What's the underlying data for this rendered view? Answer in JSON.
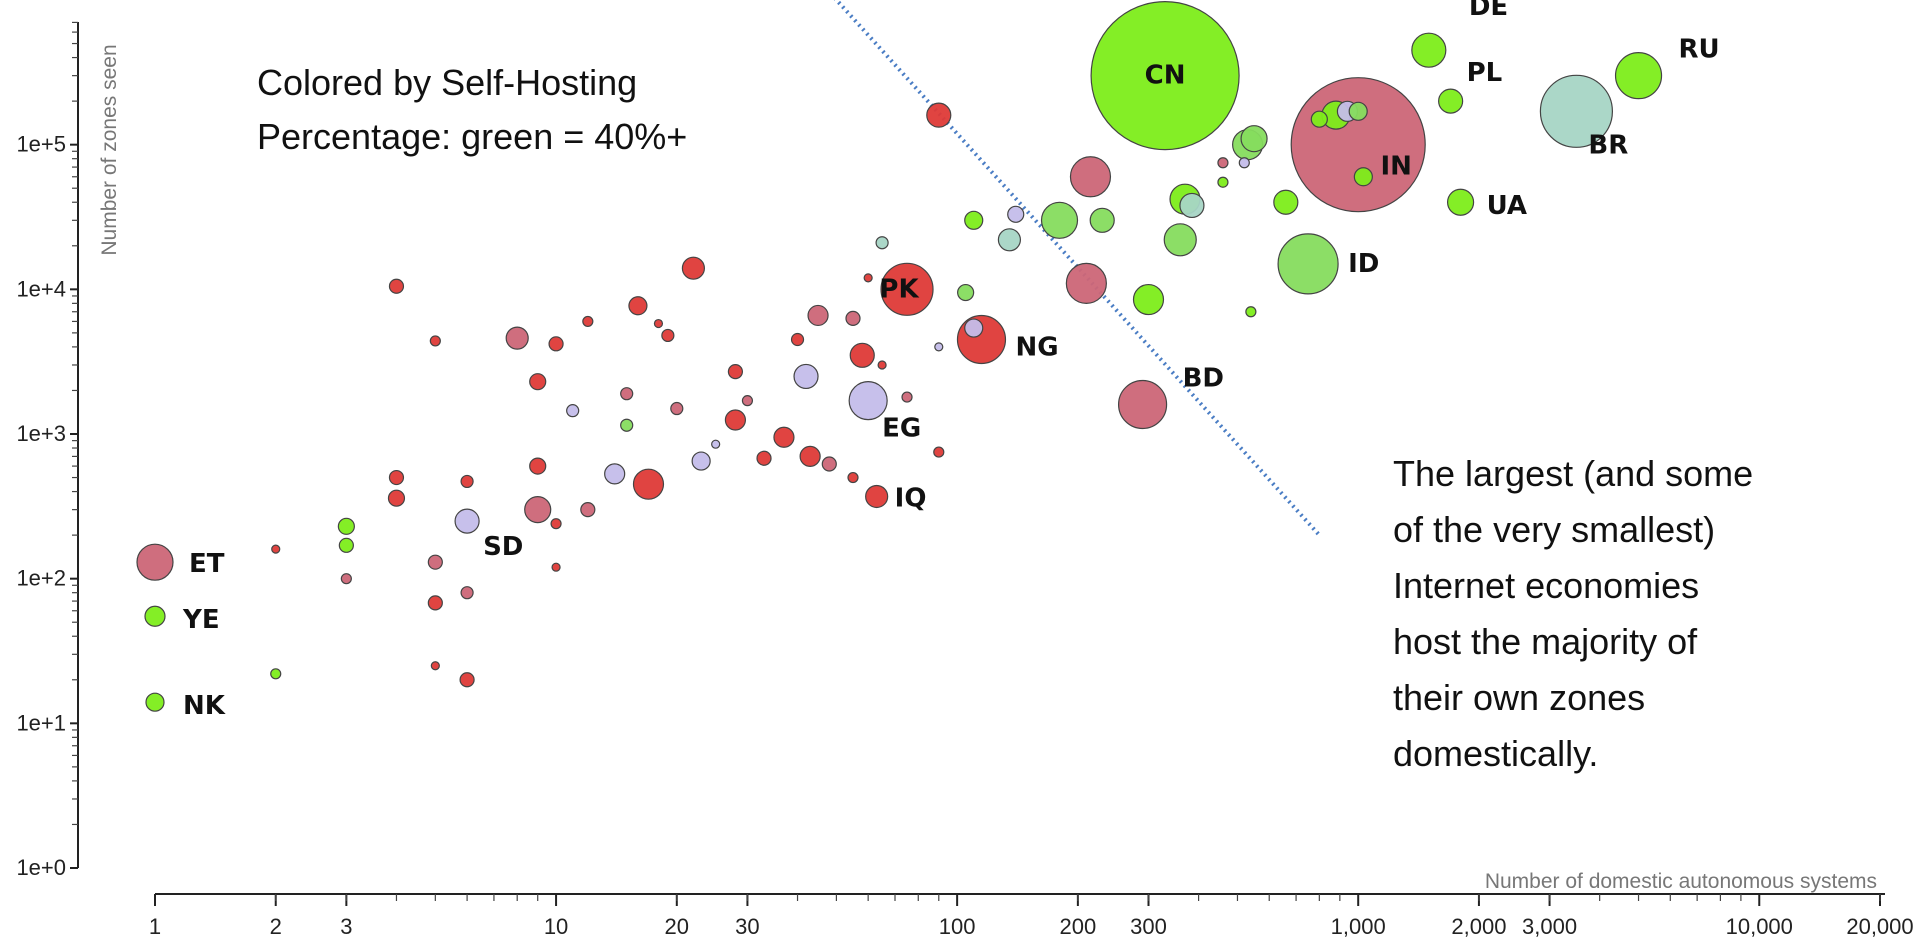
{
  "chart_data": {
    "type": "scatter",
    "xscale": "log",
    "yscale": "log",
    "xlabel": "Number of domestic autonomous systems",
    "ylabel": "Number of zones seen",
    "xlim": [
      1,
      20000
    ],
    "ylim": [
      1,
      1000000
    ],
    "x_ticks": [
      {
        "value": 1,
        "label": "1"
      },
      {
        "value": 2,
        "label": "2"
      },
      {
        "value": 3,
        "label": "3"
      },
      {
        "value": 10,
        "label": "10"
      },
      {
        "value": 20,
        "label": "20"
      },
      {
        "value": 30,
        "label": "30"
      },
      {
        "value": 100,
        "label": "100"
      },
      {
        "value": 200,
        "label": "200"
      },
      {
        "value": 300,
        "label": "300"
      },
      {
        "value": 1000,
        "label": "1,000"
      },
      {
        "value": 2000,
        "label": "2,000"
      },
      {
        "value": 3000,
        "label": "3,000"
      },
      {
        "value": 10000,
        "label": "10,000"
      },
      {
        "value": 20000,
        "label": "20,000"
      }
    ],
    "y_ticks": [
      {
        "value": 1,
        "label": "1e+0"
      },
      {
        "value": 10,
        "label": "1e+1"
      },
      {
        "value": 100,
        "label": "1e+2"
      },
      {
        "value": 1000,
        "label": "1e+3"
      },
      {
        "value": 10000,
        "label": "1e+4"
      },
      {
        "value": 100000,
        "label": "1e+5"
      }
    ],
    "annotations": {
      "legend_line1": "Colored by Self-Hosting",
      "legend_line2": "Percentage: green = 40%+",
      "note_line1": "The largest (and some",
      "note_line2": "of the very smallest)",
      "note_line3": "Internet economies",
      "note_line4": "host the majority of",
      "note_line5": "their own zones",
      "note_line6": "domestically."
    },
    "divider_line": {
      "style": "dotted",
      "color": "#4a7dc4",
      "from": {
        "x": 35,
        "y": 3000000
      },
      "to": {
        "x": 800,
        "y": 200
      }
    },
    "colors": {
      "red": "#de3a37",
      "rose": "#cc6677",
      "lavender": "#c4bdea",
      "teal": "#a7d5c5",
      "green": "#7ded1a",
      "lightgreen": "#86dc5e",
      "outline": "#444444"
    },
    "labeled_points": [
      {
        "label": "CN",
        "x": 330,
        "y": 300000,
        "size": 74,
        "color": "green"
      },
      {
        "label": "IN",
        "x": 1000,
        "y": 100000,
        "size": 67,
        "color": "rose"
      },
      {
        "label": "DE",
        "x": 1500,
        "y": 450000,
        "size": 17,
        "color": "green"
      },
      {
        "label": "PL",
        "x": 1700,
        "y": 200000,
        "size": 12,
        "color": "green"
      },
      {
        "label": "RU",
        "x": 5000,
        "y": 300000,
        "size": 23,
        "color": "green"
      },
      {
        "label": "BR",
        "x": 3500,
        "y": 170000,
        "size": 36,
        "color": "teal"
      },
      {
        "label": "UA",
        "x": 1800,
        "y": 40000,
        "size": 13,
        "color": "green"
      },
      {
        "label": "ID",
        "x": 750,
        "y": 15000,
        "size": 30,
        "color": "lightgreen"
      },
      {
        "label": "PK",
        "x": 75,
        "y": 10000,
        "size": 26,
        "color": "red"
      },
      {
        "label": "NG",
        "x": 115,
        "y": 4500,
        "size": 24,
        "color": "red"
      },
      {
        "label": "BD",
        "x": 290,
        "y": 1600,
        "size": 24,
        "color": "rose"
      },
      {
        "label": "EG",
        "x": 60,
        "y": 1700,
        "size": 19,
        "color": "lavender"
      },
      {
        "label": "IQ",
        "x": 63,
        "y": 370,
        "size": 11,
        "color": "red"
      },
      {
        "label": "SD",
        "x": 6,
        "y": 250,
        "size": 12,
        "color": "lavender"
      },
      {
        "label": "ET",
        "x": 1,
        "y": 130,
        "size": 18,
        "color": "rose"
      },
      {
        "label": "YE",
        "x": 1,
        "y": 55,
        "size": 10,
        "color": "green"
      },
      {
        "label": "NK",
        "x": 1,
        "y": 14,
        "size": 9,
        "color": "green"
      }
    ],
    "other_points": [
      {
        "x": 90,
        "y": 160000,
        "size": 12,
        "color": "red"
      },
      {
        "x": 215,
        "y": 60000,
        "size": 20,
        "color": "rose"
      },
      {
        "x": 210,
        "y": 11000,
        "size": 20,
        "color": "rose"
      },
      {
        "x": 550,
        "y": 110000,
        "size": 13,
        "color": "lightgreen"
      },
      {
        "x": 530,
        "y": 100000,
        "size": 15,
        "color": "lightgreen"
      },
      {
        "x": 800,
        "y": 150000,
        "size": 8,
        "color": "green"
      },
      {
        "x": 880,
        "y": 160000,
        "size": 14,
        "color": "green"
      },
      {
        "x": 940,
        "y": 170000,
        "size": 10,
        "color": "lavender"
      },
      {
        "x": 1000,
        "y": 170000,
        "size": 9,
        "color": "lightgreen"
      },
      {
        "x": 1030,
        "y": 60000,
        "size": 9,
        "color": "green"
      },
      {
        "x": 660,
        "y": 40000,
        "size": 12,
        "color": "green"
      },
      {
        "x": 370,
        "y": 42000,
        "size": 15,
        "color": "green"
      },
      {
        "x": 385,
        "y": 38000,
        "size": 12,
        "color": "teal"
      },
      {
        "x": 360,
        "y": 22000,
        "size": 16,
        "color": "lightgreen"
      },
      {
        "x": 300,
        "y": 8500,
        "size": 15,
        "color": "green"
      },
      {
        "x": 180,
        "y": 30000,
        "size": 18,
        "color": "lightgreen"
      },
      {
        "x": 230,
        "y": 30000,
        "size": 12,
        "color": "lightgreen"
      },
      {
        "x": 140,
        "y": 33000,
        "size": 8,
        "color": "lavender"
      },
      {
        "x": 110,
        "y": 30000,
        "size": 9,
        "color": "green"
      },
      {
        "x": 135,
        "y": 22000,
        "size": 11,
        "color": "teal"
      },
      {
        "x": 460,
        "y": 75000,
        "size": 5,
        "color": "rose"
      },
      {
        "x": 520,
        "y": 75000,
        "size": 5,
        "color": "lavender"
      },
      {
        "x": 460,
        "y": 55000,
        "size": 5,
        "color": "green"
      },
      {
        "x": 540,
        "y": 7000,
        "size": 5,
        "color": "green"
      },
      {
        "x": 65,
        "y": 21000,
        "size": 6,
        "color": "teal"
      },
      {
        "x": 22,
        "y": 14000,
        "size": 11,
        "color": "red"
      },
      {
        "x": 16,
        "y": 7700,
        "size": 9,
        "color": "red"
      },
      {
        "x": 45,
        "y": 6600,
        "size": 10,
        "color": "rose"
      },
      {
        "x": 55,
        "y": 6300,
        "size": 7,
        "color": "rose"
      },
      {
        "x": 58,
        "y": 3500,
        "size": 12,
        "color": "red"
      },
      {
        "x": 105,
        "y": 9500,
        "size": 8,
        "color": "lightgreen"
      },
      {
        "x": 110,
        "y": 5400,
        "size": 9,
        "color": "lavender"
      },
      {
        "x": 4,
        "y": 10500,
        "size": 7,
        "color": "red"
      },
      {
        "x": 5,
        "y": 4400,
        "size": 5,
        "color": "red"
      },
      {
        "x": 8,
        "y": 4600,
        "size": 11,
        "color": "rose"
      },
      {
        "x": 10,
        "y": 4200,
        "size": 7,
        "color": "red"
      },
      {
        "x": 12,
        "y": 6000,
        "size": 5,
        "color": "red"
      },
      {
        "x": 9,
        "y": 2300,
        "size": 8,
        "color": "red"
      },
      {
        "x": 18,
        "y": 5800,
        "size": 4,
        "color": "red"
      },
      {
        "x": 19,
        "y": 4800,
        "size": 6,
        "color": "red"
      },
      {
        "x": 28,
        "y": 2700,
        "size": 7,
        "color": "red"
      },
      {
        "x": 40,
        "y": 4500,
        "size": 6,
        "color": "red"
      },
      {
        "x": 42,
        "y": 2500,
        "size": 12,
        "color": "lavender"
      },
      {
        "x": 20,
        "y": 1500,
        "size": 6,
        "color": "rose"
      },
      {
        "x": 15,
        "y": 1900,
        "size": 6,
        "color": "rose"
      },
      {
        "x": 11,
        "y": 1450,
        "size": 6,
        "color": "lavender"
      },
      {
        "x": 15,
        "y": 1150,
        "size": 6,
        "color": "lightgreen"
      },
      {
        "x": 28,
        "y": 1250,
        "size": 10,
        "color": "red"
      },
      {
        "x": 37,
        "y": 950,
        "size": 10,
        "color": "red"
      },
      {
        "x": 43,
        "y": 700,
        "size": 10,
        "color": "red"
      },
      {
        "x": 33,
        "y": 680,
        "size": 7,
        "color": "red"
      },
      {
        "x": 23,
        "y": 650,
        "size": 9,
        "color": "lavender"
      },
      {
        "x": 17,
        "y": 450,
        "size": 15,
        "color": "red"
      },
      {
        "x": 14,
        "y": 530,
        "size": 10,
        "color": "lavender"
      },
      {
        "x": 12,
        "y": 300,
        "size": 7,
        "color": "rose"
      },
      {
        "x": 9,
        "y": 300,
        "size": 13,
        "color": "rose"
      },
      {
        "x": 9,
        "y": 600,
        "size": 8,
        "color": "red"
      },
      {
        "x": 10,
        "y": 240,
        "size": 5,
        "color": "red"
      },
      {
        "x": 4,
        "y": 500,
        "size": 7,
        "color": "red"
      },
      {
        "x": 4,
        "y": 360,
        "size": 8,
        "color": "red"
      },
      {
        "x": 6,
        "y": 470,
        "size": 6,
        "color": "red"
      },
      {
        "x": 3,
        "y": 230,
        "size": 8,
        "color": "green"
      },
      {
        "x": 3,
        "y": 170,
        "size": 7,
        "color": "green"
      },
      {
        "x": 3,
        "y": 100,
        "size": 5,
        "color": "rose"
      },
      {
        "x": 5,
        "y": 130,
        "size": 7,
        "color": "rose"
      },
      {
        "x": 6,
        "y": 80,
        "size": 6,
        "color": "rose"
      },
      {
        "x": 5,
        "y": 68,
        "size": 7,
        "color": "red"
      },
      {
        "x": 5,
        "y": 25,
        "size": 4,
        "color": "red"
      },
      {
        "x": 6,
        "y": 20,
        "size": 7,
        "color": "red"
      },
      {
        "x": 2,
        "y": 22,
        "size": 5,
        "color": "green"
      },
      {
        "x": 2,
        "y": 160,
        "size": 4,
        "color": "red"
      },
      {
        "x": 10,
        "y": 120,
        "size": 4,
        "color": "red"
      },
      {
        "x": 90,
        "y": 750,
        "size": 5,
        "color": "red"
      },
      {
        "x": 55,
        "y": 500,
        "size": 5,
        "color": "red"
      },
      {
        "x": 48,
        "y": 620,
        "size": 7,
        "color": "rose"
      },
      {
        "x": 75,
        "y": 1800,
        "size": 5,
        "color": "rose"
      },
      {
        "x": 90,
        "y": 4000,
        "size": 4,
        "color": "lavender"
      },
      {
        "x": 65,
        "y": 3000,
        "size": 4,
        "color": "red"
      },
      {
        "x": 60,
        "y": 12000,
        "size": 4,
        "color": "red"
      },
      {
        "x": 30,
        "y": 1700,
        "size": 5,
        "color": "rose"
      },
      {
        "x": 25,
        "y": 850,
        "size": 4,
        "color": "lavender"
      }
    ]
  }
}
